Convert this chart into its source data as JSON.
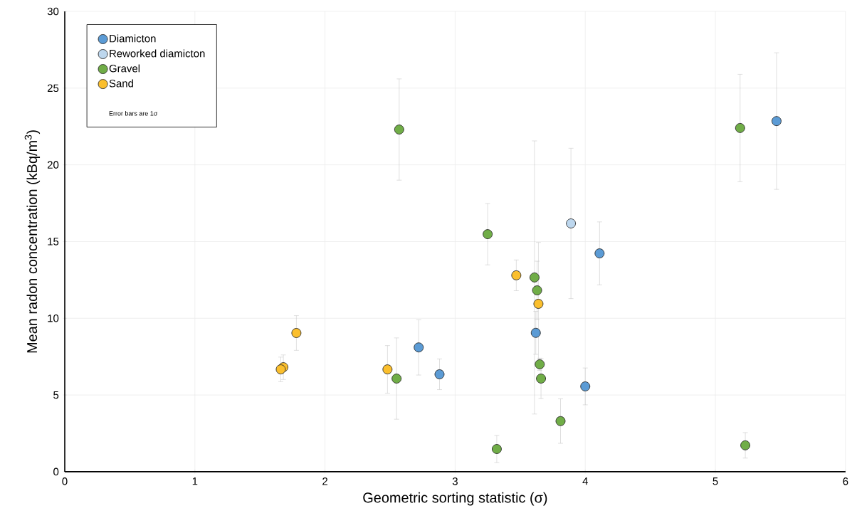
{
  "chart_data": {
    "type": "scatter",
    "xlabel": "Geometric sorting statistic (σ)",
    "ylabel": "Mean radon concentration (kBq/m$^{3}$)",
    "xlim": [
      0,
      6
    ],
    "ylim": [
      0,
      30
    ],
    "xticks": [
      0,
      1,
      2,
      3,
      4,
      5,
      6
    ],
    "yticks": [
      0,
      5,
      10,
      15,
      20,
      25,
      30
    ],
    "grid": true,
    "legend": "top left",
    "marker": "circle",
    "annotations": [
      "Error bars are 1σ"
    ],
    "series": [
      {
        "name": "Diamicton",
        "color": "#5b9bd5",
        "x": [
          2.72,
          2.88,
          3.62,
          4.0,
          4.11,
          5.47
        ],
        "values": [
          8.1,
          6.35,
          9.05,
          5.56,
          14.23,
          22.85
        ],
        "errors": [
          1.8,
          1.0,
          1.4,
          1.2,
          2.05,
          4.45
        ]
      },
      {
        "name": "Reworked diamicton",
        "color": "#bdd7ee",
        "x": [
          3.89
        ],
        "values": [
          16.18
        ],
        "errors": [
          4.9
        ]
      },
      {
        "name": "Gravel",
        "color": "#70ad47",
        "x": [
          2.57,
          3.25,
          3.61,
          3.63,
          3.65,
          3.66,
          2.55,
          3.32,
          3.81,
          5.19,
          5.23
        ],
        "values": [
          22.3,
          15.48,
          12.66,
          11.82,
          7.0,
          6.07,
          6.07,
          1.48,
          3.3,
          22.4,
          1.72
        ],
        "errors": [
          3.3,
          2.0,
          8.9,
          1.9,
          0.4,
          1.3,
          2.65,
          0.88,
          1.45,
          3.5,
          0.83
        ]
      },
      {
        "name": "Sand",
        "color": "#fbbf2d",
        "x": [
          1.78,
          1.68,
          1.66,
          2.48,
          3.47,
          3.64
        ],
        "values": [
          9.04,
          6.81,
          6.67,
          6.67,
          12.8,
          10.94
        ],
        "errors": [
          1.13,
          0.8,
          0.8,
          1.55,
          1.0,
          4.0
        ]
      }
    ]
  }
}
